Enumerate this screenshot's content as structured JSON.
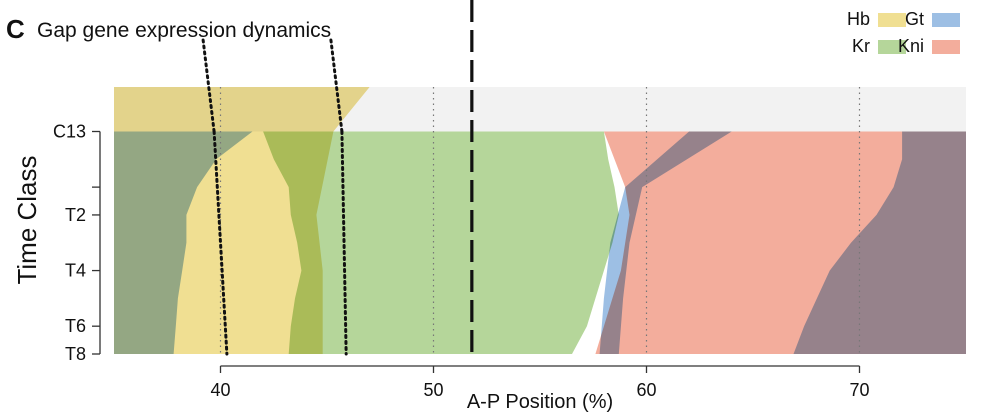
{
  "panel": {
    "letter": "C",
    "title": "Gap gene expression dynamics"
  },
  "chart_data": {
    "type": "area",
    "title": "Gap gene expression dynamics",
    "xlabel": "A-P Position (%)",
    "ylabel": "Time Class",
    "xlim": [
      35,
      75
    ],
    "ylim": [
      -1.6,
      8
    ],
    "xticks": [
      40,
      50,
      60,
      70
    ],
    "yticks": [
      {
        "label": "C13",
        "t": 0
      },
      {
        "label": "",
        "t": 2
      },
      {
        "label": "T2",
        "t": 3
      },
      {
        "label": "T4",
        "t": 5
      },
      {
        "label": "T6",
        "t": 7
      },
      {
        "label": "T8",
        "t": 8
      }
    ],
    "legend_placement": "top-right",
    "grid": "dotted vertical lines at 40, 50, 60, 70 %",
    "background_above_c13": "#f2f2f2",
    "overlap_color": "#9aa87f",
    "markers": {
      "dotted_black": [
        {
          "c13": 39.7,
          "bottom": 40.3
        },
        {
          "c13": 45.7,
          "bottom": 45.9
        }
      ],
      "dashed_black": 51.8
    },
    "series": [
      {
        "name": "Hb",
        "color": "#f0df92",
        "regions": [
          {
            "t": [
              -1.6,
              0,
              3,
              5,
              8
            ],
            "left": [
              35,
              35,
              35,
              35,
              35
            ],
            "right": [
              47.0,
              45.3,
              44.5,
              44.8,
              44.8
            ]
          }
        ]
      },
      {
        "name": "Kr",
        "color": "#b5d69a",
        "regions": [
          {
            "t": [
              0,
              1,
              2,
              3,
              4,
              5,
              6,
              7,
              8
            ],
            "left": [
              42.0,
              42.5,
              43.2,
              43.3,
              43.6,
              43.8,
              43.5,
              43.3,
              43.2
            ],
            "right": [
              58.0,
              58.2,
              58.5,
              58.7,
              58.4,
              58.0,
              57.6,
              57.2,
              56.5
            ]
          }
        ]
      },
      {
        "name": "Kni",
        "color": "#f3ad9c",
        "regions": [
          {
            "t": [
              0,
              1,
              2,
              3,
              4,
              5,
              6,
              7,
              8
            ],
            "left": [
              58.0,
              58.5,
              59.0,
              59.2,
              59.0,
              58.8,
              58.4,
              58.0,
              57.6
            ],
            "right": [
              75.0,
              75.0,
              75.0,
              75.0,
              75.0,
              75.0,
              75.0,
              75.0,
              75.0
            ]
          }
        ]
      },
      {
        "name": "Gt",
        "color": "#9dbfe4",
        "regions": [
          {
            "t": [
              0,
              1,
              2,
              3,
              4,
              5,
              6,
              7,
              8
            ],
            "left": [
              35,
              35,
              35,
              35,
              35,
              35,
              35,
              35,
              35
            ],
            "right": [
              41.5,
              39.8,
              38.9,
              38.4,
              38.4,
              38.2,
              38.0,
              37.9,
              37.8
            ]
          },
          {
            "t": [
              0,
              1,
              2,
              3,
              4,
              5,
              6,
              7,
              8
            ],
            "left": [
              72.0,
              72.0,
              71.6,
              70.8,
              69.6,
              68.6,
              68.0,
              67.4,
              66.9
            ],
            "right": [
              75,
              75,
              75,
              75,
              75,
              75,
              75,
              75,
              75
            ]
          },
          {
            "t": [
              0,
              2,
              4,
              6,
              8
            ],
            "left": [
              62.0,
              59.0,
              58.3,
              58.0,
              57.8
            ],
            "right": [
              64.0,
              59.8,
              59.2,
              58.9,
              58.7
            ]
          }
        ]
      }
    ]
  }
}
